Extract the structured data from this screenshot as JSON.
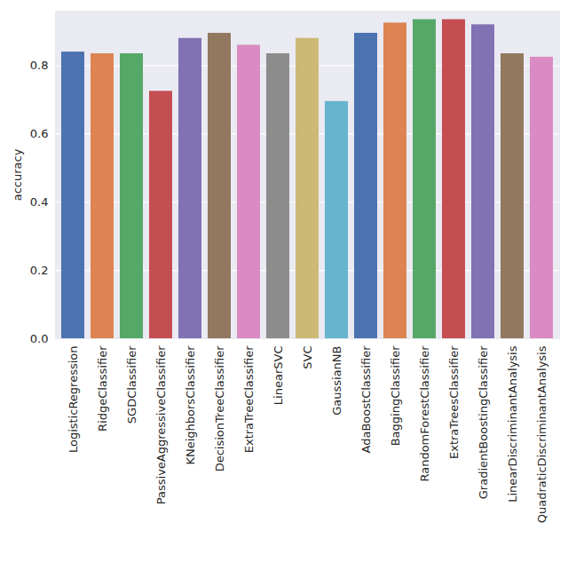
{
  "chart_data": {
    "type": "bar",
    "categories": [
      "LogisticRegression",
      "RidgeClassifier",
      "SGDClassifier",
      "PassiveAggressiveClassifier",
      "KNeighborsClassifier",
      "DecisionTreeClassifier",
      "ExtraTreeClassifier",
      "LinearSVC",
      "SVC",
      "GaussianNB",
      "AdaBoostClassifier",
      "BaggingClassifier",
      "RandomForestClassifier",
      "ExtraTreesClassifier",
      "GradientBoostingClassifier",
      "LinearDiscriminantAnalysis",
      "QuadraticDiscriminantAnalysis"
    ],
    "values": [
      0.84,
      0.835,
      0.835,
      0.725,
      0.88,
      0.895,
      0.86,
      0.835,
      0.88,
      0.695,
      0.895,
      0.925,
      0.935,
      0.935,
      0.92,
      0.835,
      0.825
    ],
    "colors": [
      "#4c72b0",
      "#dd8452",
      "#55a868",
      "#c44e52",
      "#8172b3",
      "#937860",
      "#da8bc3",
      "#8c8c8c",
      "#ccb974",
      "#64b5cd",
      "#4c72b0",
      "#dd8452",
      "#55a868",
      "#c44e52",
      "#8172b3",
      "#937860",
      "#da8bc3"
    ],
    "y_label": "accuracy",
    "ylim": [
      0,
      0.96
    ],
    "yticks": [
      {
        "value": 0,
        "label": "0.0"
      },
      {
        "value": 0.2,
        "label": "0.2"
      },
      {
        "value": 0.4,
        "label": "0.4"
      },
      {
        "value": 0.6,
        "label": "0.6"
      },
      {
        "value": 0.8,
        "label": "0.8"
      }
    ],
    "grid": true
  }
}
